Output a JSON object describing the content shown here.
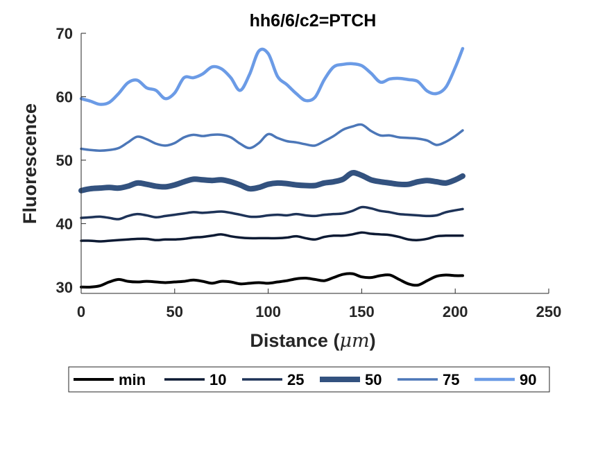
{
  "chart_data": {
    "type": "line",
    "title": "hh6/6/c2=PTCH",
    "xlabel_prefix": "Distance (",
    "xlabel_unit": "μm",
    "xlabel_suffix": ")",
    "ylabel": "Fluorescence",
    "xlim": [
      0,
      250
    ],
    "ylim": [
      29,
      70
    ],
    "xticks": [
      "0",
      "50",
      "100",
      "150",
      "200",
      "250"
    ],
    "yticks": [
      "30",
      "40",
      "50",
      "60",
      "70"
    ],
    "legend_position": "bottom-outside",
    "grid": false,
    "series": [
      {
        "name": "min",
        "color": "#000000",
        "x": [
          0,
          5,
          10,
          15,
          20,
          25,
          30,
          35,
          40,
          45,
          50,
          55,
          60,
          65,
          70,
          75,
          80,
          85,
          90,
          95,
          100,
          105,
          110,
          115,
          120,
          125,
          130,
          135,
          140,
          145,
          150,
          155,
          160,
          165,
          170,
          175,
          180,
          185,
          190,
          195,
          200,
          204
        ],
        "values": [
          30.0,
          30.0,
          30.2,
          30.8,
          31.2,
          30.9,
          30.8,
          30.9,
          30.8,
          30.7,
          30.8,
          30.9,
          31.1,
          30.9,
          30.6,
          30.9,
          30.8,
          30.5,
          30.6,
          30.7,
          30.6,
          30.8,
          31.0,
          31.3,
          31.4,
          31.2,
          31.0,
          31.5,
          32.0,
          32.1,
          31.6,
          31.5,
          31.8,
          31.9,
          31.2,
          30.5,
          30.3,
          31.0,
          31.7,
          31.9,
          31.8,
          31.8
        ]
      },
      {
        "name": "10",
        "color": "#0d1a33",
        "x": [
          0,
          5,
          10,
          15,
          20,
          25,
          30,
          35,
          40,
          45,
          50,
          55,
          60,
          65,
          70,
          75,
          80,
          85,
          90,
          95,
          100,
          105,
          110,
          115,
          120,
          125,
          130,
          135,
          140,
          145,
          150,
          155,
          160,
          165,
          170,
          175,
          180,
          185,
          190,
          195,
          200,
          204
        ],
        "values": [
          37.3,
          37.3,
          37.2,
          37.3,
          37.4,
          37.5,
          37.6,
          37.6,
          37.4,
          37.5,
          37.5,
          37.6,
          37.8,
          37.9,
          38.1,
          38.3,
          38.0,
          37.8,
          37.7,
          37.7,
          37.7,
          37.7,
          37.8,
          38.0,
          37.7,
          37.5,
          37.9,
          38.1,
          38.1,
          38.3,
          38.6,
          38.4,
          38.3,
          38.2,
          37.9,
          37.5,
          37.4,
          37.6,
          38.0,
          38.1,
          38.1,
          38.1
        ]
      },
      {
        "name": "25",
        "color": "#1e3358",
        "x": [
          0,
          5,
          10,
          15,
          20,
          25,
          30,
          35,
          40,
          45,
          50,
          55,
          60,
          65,
          70,
          75,
          80,
          85,
          90,
          95,
          100,
          105,
          110,
          115,
          120,
          125,
          130,
          135,
          140,
          145,
          150,
          155,
          160,
          165,
          170,
          175,
          180,
          185,
          190,
          195,
          200,
          204
        ],
        "values": [
          40.9,
          41.0,
          41.1,
          40.9,
          40.7,
          41.2,
          41.5,
          41.3,
          41.0,
          41.2,
          41.4,
          41.6,
          41.8,
          41.7,
          41.8,
          41.9,
          41.7,
          41.4,
          41.1,
          41.1,
          41.3,
          41.4,
          41.3,
          41.5,
          41.3,
          41.2,
          41.4,
          41.5,
          41.6,
          42.0,
          42.6,
          42.4,
          42.0,
          41.8,
          41.5,
          41.4,
          41.3,
          41.2,
          41.3,
          41.8,
          42.1,
          42.3
        ]
      },
      {
        "name": "50",
        "color": "#33527f",
        "x": [
          0,
          5,
          10,
          15,
          20,
          25,
          30,
          35,
          40,
          45,
          50,
          55,
          60,
          65,
          70,
          75,
          80,
          85,
          90,
          95,
          100,
          105,
          110,
          115,
          120,
          125,
          130,
          135,
          140,
          145,
          150,
          155,
          160,
          165,
          170,
          175,
          180,
          185,
          190,
          195,
          200,
          204
        ],
        "values": [
          45.2,
          45.5,
          45.6,
          45.7,
          45.6,
          45.9,
          46.4,
          46.2,
          45.9,
          45.8,
          46.1,
          46.6,
          47.0,
          46.9,
          46.8,
          46.9,
          46.6,
          46.1,
          45.5,
          45.7,
          46.2,
          46.4,
          46.3,
          46.1,
          46.0,
          46.0,
          46.4,
          46.6,
          47.0,
          48.0,
          47.6,
          46.9,
          46.6,
          46.4,
          46.2,
          46.2,
          46.6,
          46.8,
          46.6,
          46.4,
          46.9,
          47.5
        ]
      },
      {
        "name": "75",
        "color": "#4c77b8",
        "x": [
          0,
          5,
          10,
          15,
          20,
          25,
          30,
          35,
          40,
          45,
          50,
          55,
          60,
          65,
          70,
          75,
          80,
          85,
          90,
          95,
          100,
          105,
          110,
          115,
          120,
          125,
          130,
          135,
          140,
          145,
          150,
          155,
          160,
          165,
          170,
          175,
          180,
          185,
          190,
          195,
          200,
          204
        ],
        "values": [
          51.8,
          51.6,
          51.5,
          51.6,
          51.9,
          52.8,
          53.7,
          53.3,
          52.6,
          52.3,
          52.7,
          53.6,
          54.0,
          53.8,
          54.0,
          54.0,
          53.6,
          52.6,
          51.9,
          52.7,
          54.1,
          53.5,
          53.0,
          52.8,
          52.5,
          52.3,
          53.0,
          53.8,
          54.8,
          55.3,
          55.6,
          54.6,
          53.9,
          53.9,
          53.6,
          53.5,
          53.4,
          53.1,
          52.4,
          52.9,
          53.8,
          54.7
        ]
      },
      {
        "name": "90",
        "color": "#6b9be6",
        "x": [
          0,
          5,
          10,
          15,
          20,
          25,
          30,
          35,
          40,
          45,
          50,
          55,
          60,
          65,
          70,
          75,
          80,
          85,
          90,
          95,
          100,
          105,
          110,
          115,
          120,
          125,
          130,
          135,
          140,
          145,
          150,
          155,
          160,
          165,
          170,
          175,
          180,
          185,
          190,
          195,
          200,
          204
        ],
        "values": [
          59.7,
          59.3,
          58.8,
          59.1,
          60.5,
          62.2,
          62.6,
          61.4,
          61.0,
          59.7,
          60.6,
          63.0,
          63.0,
          63.6,
          64.7,
          64.4,
          63.0,
          61.0,
          63.5,
          67.2,
          66.8,
          63.2,
          61.9,
          60.5,
          59.4,
          59.9,
          62.7,
          64.7,
          65.1,
          65.2,
          64.9,
          63.7,
          62.3,
          62.8,
          62.9,
          62.7,
          62.4,
          60.9,
          60.5,
          61.5,
          64.6,
          67.6
        ]
      }
    ]
  }
}
